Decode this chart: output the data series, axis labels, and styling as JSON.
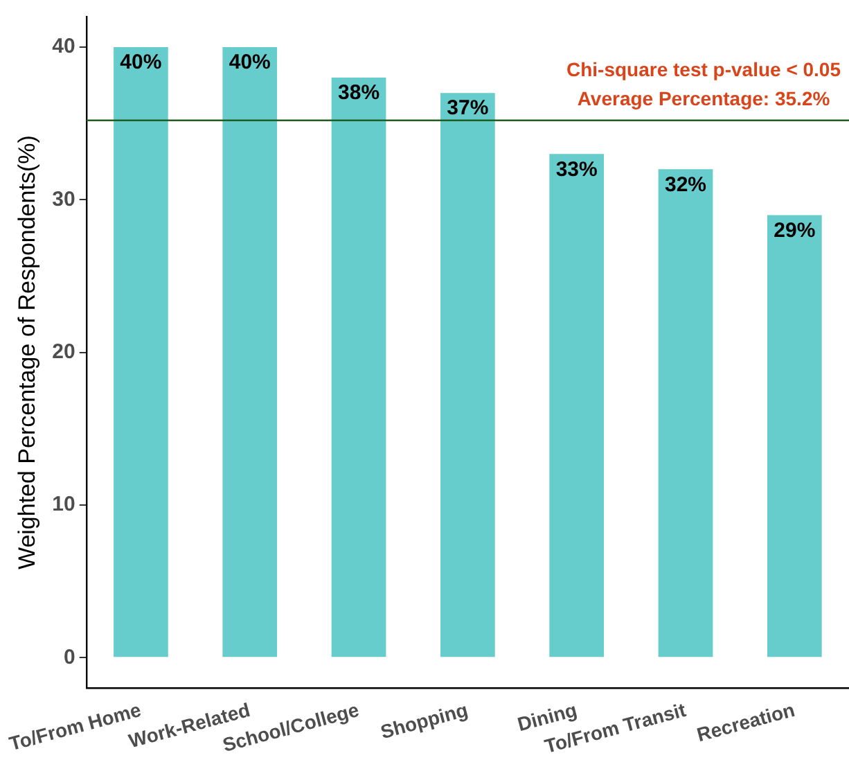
{
  "chart_data": {
    "type": "bar",
    "ylabel": "Weighted Percentage of Respondents(%)",
    "categories": [
      "To/From Home",
      "Work-Related",
      "School/College",
      "Shopping",
      "Dining",
      "To/From Transit",
      "Recreation"
    ],
    "values": [
      40,
      40,
      38,
      37,
      33,
      32,
      29
    ],
    "value_labels": [
      "40%",
      "40%",
      "38%",
      "37%",
      "33%",
      "32%",
      "29%"
    ],
    "color": "#66cccc",
    "ylim": [
      -2,
      42
    ],
    "yticks": [
      0,
      10,
      20,
      30,
      40
    ],
    "grid": false,
    "legend": false,
    "ref_lines": [
      {
        "axis": "y",
        "value": 35.2,
        "color": "#1f5f1f"
      }
    ],
    "annotations": [
      "Chi-square test p-value < 0.05",
      "Average Percentage: 35.2%"
    ]
  }
}
